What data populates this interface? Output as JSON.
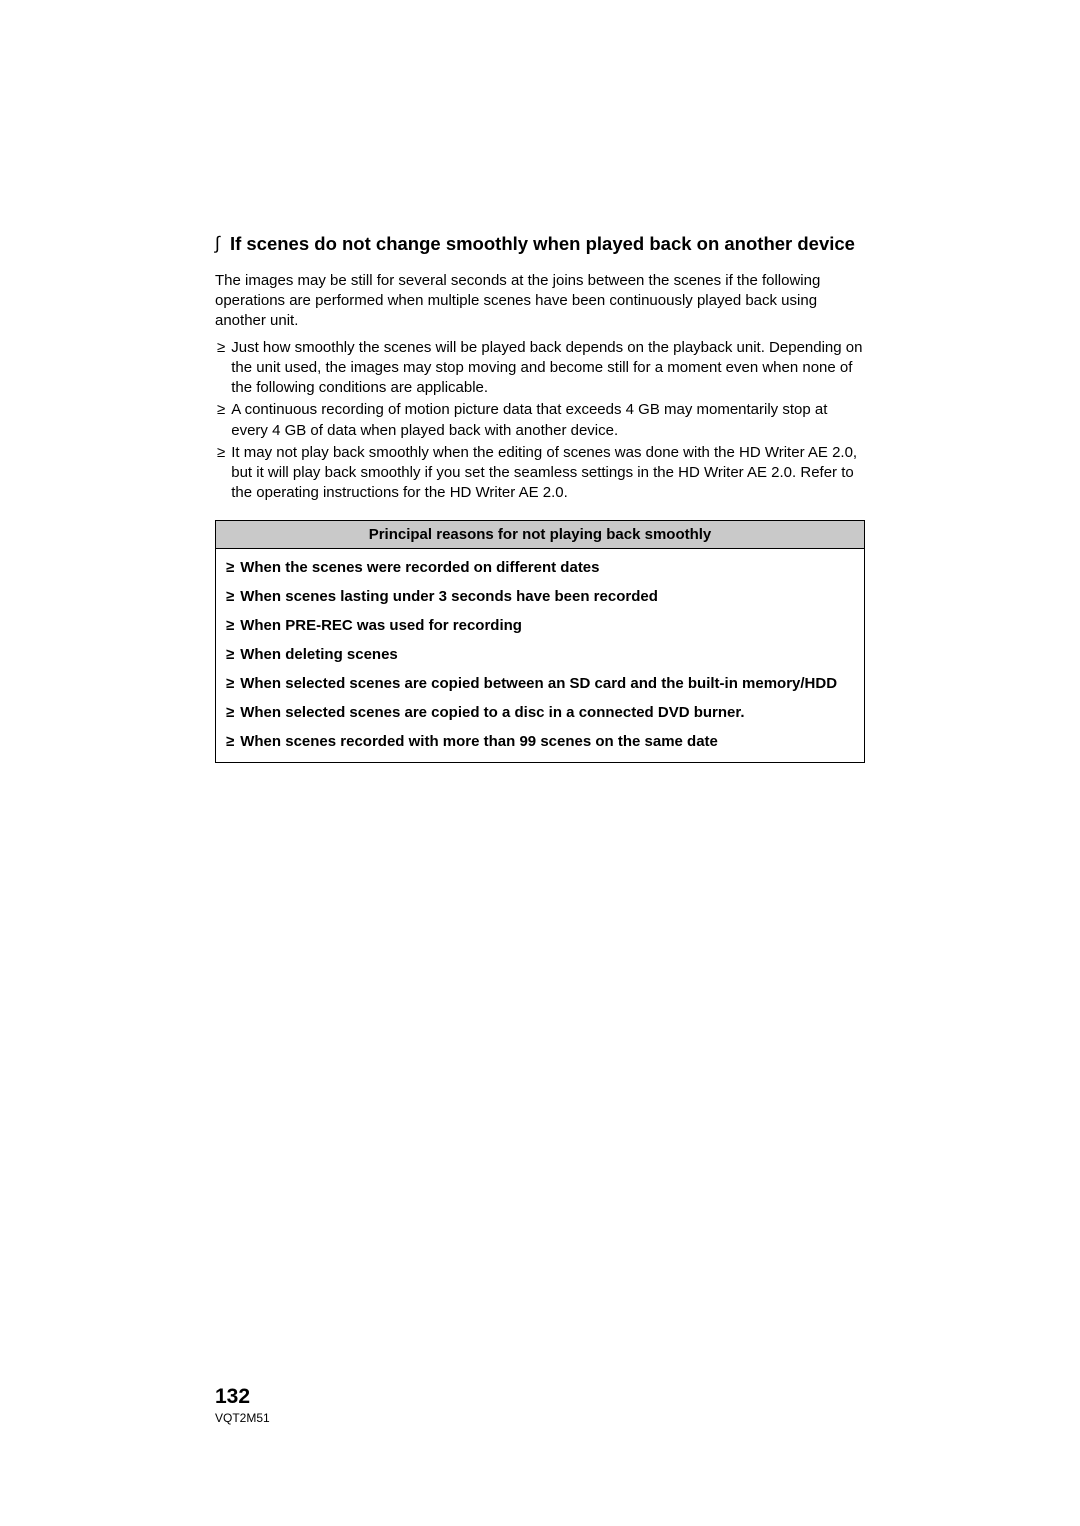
{
  "heading": {
    "marker": "∫",
    "text": "If scenes do not change smoothly when played back on another device"
  },
  "intro": "The images may be still for several seconds at the joins between the scenes if the following operations are performed when multiple scenes have been continuously played back using another unit.",
  "bullets": [
    "Just how smoothly the scenes will be played back depends on the playback unit. Depending on the unit used, the images may stop moving and become still for a moment even when none of the following conditions are applicable.",
    "A continuous recording of motion picture data that exceeds 4 GB may momentarily stop at every 4 GB of data when played back with another device.",
    "It may not play back smoothly when the editing of scenes was done with the HD Writer AE 2.0, but it will play back smoothly if you set the seamless settings in the HD Writer AE 2.0. Refer to the operating instructions for the HD Writer AE 2.0."
  ],
  "table": {
    "header": "Principal reasons for not playing back smoothly",
    "rows": [
      "When the scenes were recorded on different dates",
      "When scenes lasting under 3 seconds have been recorded",
      "When PRE-REC was used for recording",
      "When deleting scenes",
      "When selected scenes are copied between an SD card and the built-in memory/HDD",
      "When selected scenes are copied to a disc in a connected DVD burner.",
      "When scenes recorded with more than 99 scenes on the same date"
    ]
  },
  "footer": {
    "page_number": "132",
    "code": "VQT2M51"
  },
  "bullet_char": "≥",
  "table_bullet_char": "≥"
}
